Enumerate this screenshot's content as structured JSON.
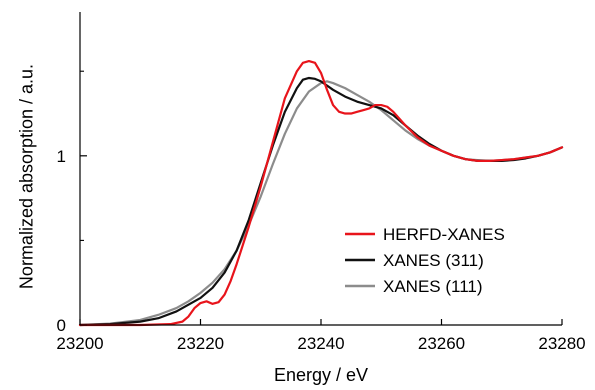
{
  "chart_data": {
    "type": "line",
    "xlabel": "Energy / eV",
    "ylabel": "Normalized absorption / a.u.",
    "xlim": [
      23200,
      23280
    ],
    "ylim": [
      0,
      1.85
    ],
    "xticks": [
      {
        "value": 23200,
        "label": "23200"
      },
      {
        "value": 23220,
        "label": "23220"
      },
      {
        "value": 23240,
        "label": "23240"
      },
      {
        "value": 23260,
        "label": "23260"
      },
      {
        "value": 23280,
        "label": "23280"
      }
    ],
    "yticks": [
      {
        "value": 0,
        "label": "0"
      },
      {
        "value": 1,
        "label": "1"
      }
    ],
    "minor_yticks": [
      0.5,
      1.5
    ],
    "legend_position": "bottom-right",
    "series": [
      {
        "name": "HERFD-XANES",
        "color": "#e8141b",
        "points": [
          [
            23200,
            0
          ],
          [
            23210,
            0
          ],
          [
            23215,
            0.005
          ],
          [
            23217,
            0.02
          ],
          [
            23218,
            0.05
          ],
          [
            23219,
            0.1
          ],
          [
            23220,
            0.13
          ],
          [
            23221,
            0.14
          ],
          [
            23222,
            0.125
          ],
          [
            23223,
            0.135
          ],
          [
            23224,
            0.18
          ],
          [
            23225,
            0.26
          ],
          [
            23226,
            0.36
          ],
          [
            23228,
            0.58
          ],
          [
            23230,
            0.82
          ],
          [
            23232,
            1.08
          ],
          [
            23234,
            1.34
          ],
          [
            23236,
            1.5
          ],
          [
            23237,
            1.55
          ],
          [
            23238,
            1.56
          ],
          [
            23239,
            1.55
          ],
          [
            23240,
            1.49
          ],
          [
            23241,
            1.39
          ],
          [
            23242,
            1.3
          ],
          [
            23243,
            1.26
          ],
          [
            23244,
            1.25
          ],
          [
            23245,
            1.25
          ],
          [
            23246,
            1.26
          ],
          [
            23247,
            1.27
          ],
          [
            23248,
            1.28
          ],
          [
            23249,
            1.3
          ],
          [
            23250,
            1.3
          ],
          [
            23251,
            1.29
          ],
          [
            23252,
            1.26
          ],
          [
            23254,
            1.18
          ],
          [
            23256,
            1.11
          ],
          [
            23258,
            1.06
          ],
          [
            23260,
            1.03
          ],
          [
            23262,
            1.0
          ],
          [
            23264,
            0.98
          ],
          [
            23266,
            0.97
          ],
          [
            23268,
            0.97
          ],
          [
            23270,
            0.975
          ],
          [
            23272,
            0.98
          ],
          [
            23274,
            0.99
          ],
          [
            23276,
            1.0
          ],
          [
            23278,
            1.02
          ],
          [
            23280,
            1.05
          ]
        ]
      },
      {
        "name": "XANES (311)",
        "color": "#111111",
        "points": [
          [
            23200,
            0
          ],
          [
            23205,
            0.005
          ],
          [
            23210,
            0.02
          ],
          [
            23213,
            0.04
          ],
          [
            23216,
            0.08
          ],
          [
            23218,
            0.12
          ],
          [
            23220,
            0.16
          ],
          [
            23222,
            0.22
          ],
          [
            23224,
            0.31
          ],
          [
            23226,
            0.44
          ],
          [
            23228,
            0.62
          ],
          [
            23230,
            0.84
          ],
          [
            23232,
            1.06
          ],
          [
            23234,
            1.26
          ],
          [
            23236,
            1.4
          ],
          [
            23237,
            1.45
          ],
          [
            23238,
            1.46
          ],
          [
            23239,
            1.455
          ],
          [
            23240,
            1.44
          ],
          [
            23242,
            1.39
          ],
          [
            23244,
            1.35
          ],
          [
            23246,
            1.32
          ],
          [
            23248,
            1.3
          ],
          [
            23250,
            1.28
          ],
          [
            23252,
            1.24
          ],
          [
            23254,
            1.18
          ],
          [
            23256,
            1.12
          ],
          [
            23258,
            1.07
          ],
          [
            23260,
            1.03
          ],
          [
            23262,
            1.0
          ],
          [
            23264,
            0.98
          ],
          [
            23266,
            0.97
          ],
          [
            23268,
            0.97
          ],
          [
            23270,
            0.97
          ],
          [
            23272,
            0.975
          ],
          [
            23274,
            0.985
          ],
          [
            23276,
            1.0
          ],
          [
            23278,
            1.02
          ],
          [
            23280,
            1.05
          ]
        ]
      },
      {
        "name": "XANES (111)",
        "color": "#8c8c8c",
        "points": [
          [
            23200,
            0
          ],
          [
            23205,
            0.008
          ],
          [
            23210,
            0.03
          ],
          [
            23213,
            0.06
          ],
          [
            23216,
            0.1
          ],
          [
            23218,
            0.14
          ],
          [
            23220,
            0.19
          ],
          [
            23222,
            0.25
          ],
          [
            23224,
            0.33
          ],
          [
            23226,
            0.44
          ],
          [
            23228,
            0.59
          ],
          [
            23230,
            0.76
          ],
          [
            23232,
            0.95
          ],
          [
            23234,
            1.13
          ],
          [
            23236,
            1.28
          ],
          [
            23238,
            1.38
          ],
          [
            23240,
            1.43
          ],
          [
            23241,
            1.44
          ],
          [
            23242,
            1.43
          ],
          [
            23244,
            1.4
          ],
          [
            23246,
            1.36
          ],
          [
            23248,
            1.32
          ],
          [
            23250,
            1.27
          ],
          [
            23252,
            1.21
          ],
          [
            23254,
            1.15
          ],
          [
            23256,
            1.1
          ],
          [
            23258,
            1.06
          ],
          [
            23260,
            1.03
          ],
          [
            23262,
            1.0
          ],
          [
            23264,
            0.98
          ],
          [
            23266,
            0.975
          ],
          [
            23268,
            0.97
          ],
          [
            23270,
            0.975
          ],
          [
            23272,
            0.98
          ],
          [
            23274,
            0.99
          ],
          [
            23276,
            1.0
          ],
          [
            23278,
            1.02
          ],
          [
            23280,
            1.05
          ]
        ]
      }
    ]
  }
}
